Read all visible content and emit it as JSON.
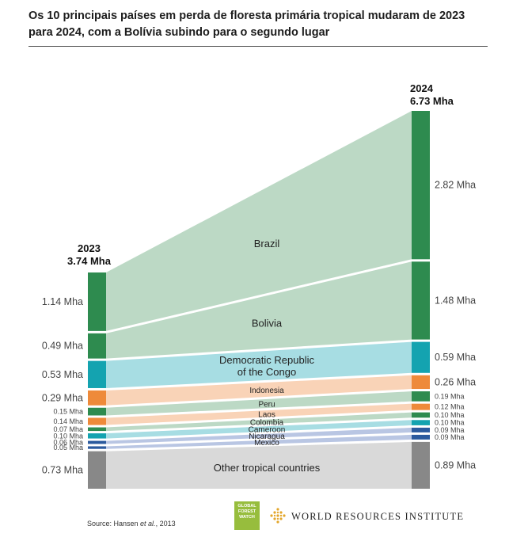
{
  "title": "Os 10 principais países em perda de floresta primária tropical mudaram de 2023 para 2024, com a Bolívia subindo para o segundo lugar",
  "source_prefix": "Source: Hansen ",
  "source_italic": "et al.",
  "source_suffix": ", 2013",
  "logos": {
    "gfw_line1": "GLOBAL",
    "gfw_line2": "FOREST",
    "gfw_line3": "WATCH",
    "wri": "WORLD RESOURCES INSTITUTE"
  },
  "chart_data": {
    "type": "sankey",
    "columns": [
      {
        "year": "2023",
        "total": "3.74 Mha"
      },
      {
        "year": "2024",
        "total": "6.73 Mha"
      }
    ],
    "countries": [
      {
        "name": "Brazil",
        "v2023": 1.14,
        "v2024": 2.82,
        "label2023": "1.14 Mha",
        "label2024": "2.82 Mha",
        "color": "#2e8b4f",
        "band": "#bcd9c5"
      },
      {
        "name": "Bolivia",
        "v2023": 0.49,
        "v2024": 1.48,
        "label2023": "0.49 Mha",
        "label2024": "1.48 Mha",
        "color": "#2e8b4f",
        "band": "#bcd9c5"
      },
      {
        "name": "Democratic Republic\nof the Congo",
        "v2023": 0.53,
        "v2024": 0.59,
        "label2023": "0.53 Mha",
        "label2024": "0.59 Mha",
        "color": "#14a3b0",
        "band": "#a7dde3"
      },
      {
        "name": "Indonesia",
        "v2023": 0.29,
        "v2024": 0.26,
        "label2023": "0.29 Mha",
        "label2024": "0.26 Mha",
        "color": "#ee8a3a",
        "band": "#f9d3b7"
      },
      {
        "name": "Peru",
        "v2023": 0.15,
        "v2024": 0.19,
        "label2023": "0.15 Mha",
        "label2024": "0.19 Mha",
        "color": "#2e8b4f",
        "band": "#bcd9c5"
      },
      {
        "name": "Laos",
        "v2023": 0.14,
        "v2024": 0.12,
        "label2023": "0.14 Mha",
        "label2024": "0.12 Mha",
        "color": "#ee8a3a",
        "band": "#f9d3b7"
      },
      {
        "name": "Colombia",
        "v2023": 0.07,
        "v2024": 0.1,
        "label2023": "0.07 Mha",
        "label2024": "0.10 Mha",
        "color": "#2e8b4f",
        "band": "#bcd9c5"
      },
      {
        "name": "Cameroon",
        "v2023": 0.1,
        "v2024": 0.1,
        "label2023": "0.10 Mha",
        "label2024": "0.10 Mha",
        "color": "#14a3b0",
        "band": "#a7dde3"
      },
      {
        "name": "Nicaragua",
        "v2023": 0.06,
        "v2024": 0.09,
        "label2023": "0.06 Mha",
        "label2024": "0.09 Mha",
        "color": "#2b5a9e",
        "band": "#b9c6e3"
      },
      {
        "name": "Mexico",
        "v2023": 0.05,
        "v2024": 0.09,
        "label2023": "0.05 Mha",
        "label2024": "0.09 Mha",
        "color": "#2b5a9e",
        "band": "#b9c6e3"
      },
      {
        "name": "Other tropical countries",
        "v2023": 0.73,
        "v2024": 0.89,
        "label2023": "0.73 Mha",
        "label2024": "0.89 Mha",
        "color": "#888888",
        "band": "#d9d9d9"
      }
    ]
  }
}
